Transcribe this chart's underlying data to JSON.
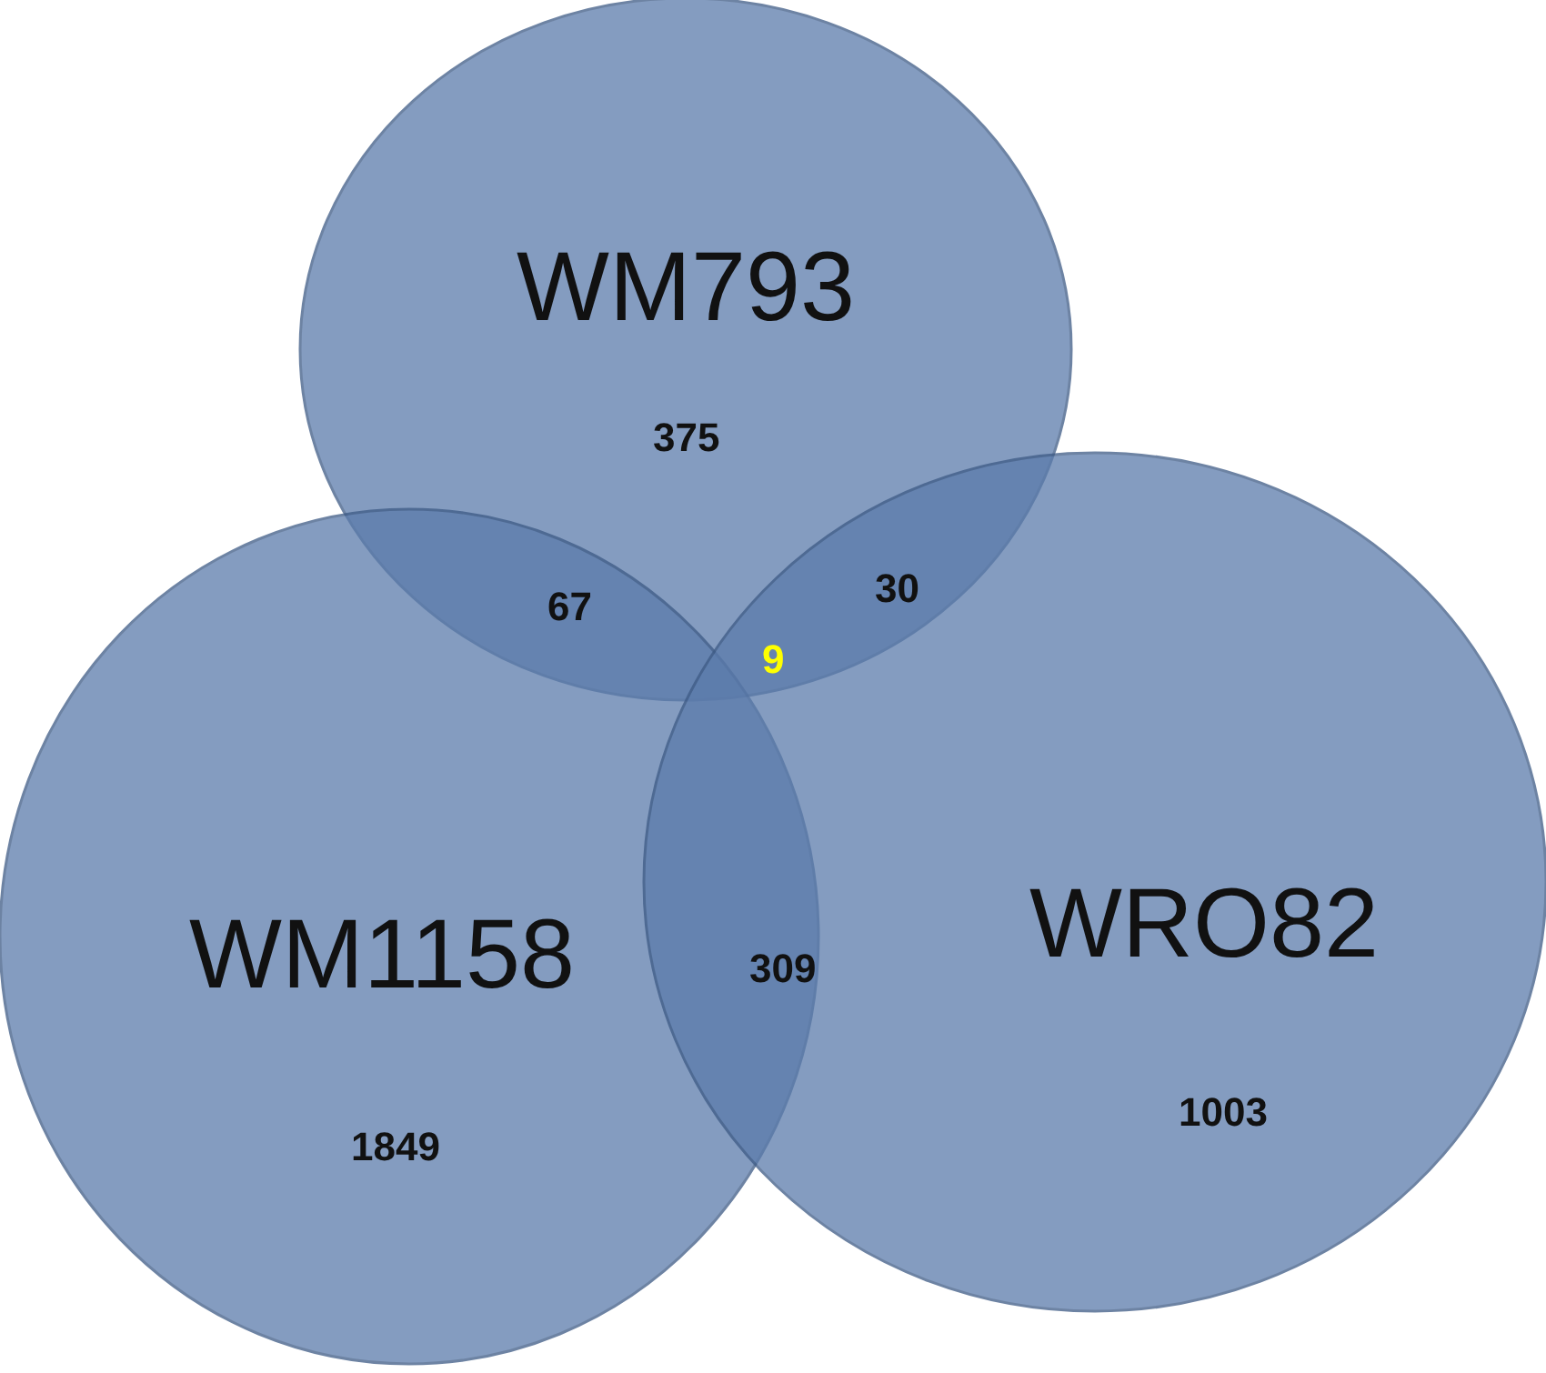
{
  "chart_data": {
    "type": "other",
    "categories": [
      "WM793",
      "WM1158",
      "WRO82"
    ],
    "values": [
      375,
      1849,
      1003
    ],
    "annotations": [
      "67",
      "30",
      "309",
      "9"
    ],
    "color": "#5b7bab",
    "data_labels": true
  }
}
